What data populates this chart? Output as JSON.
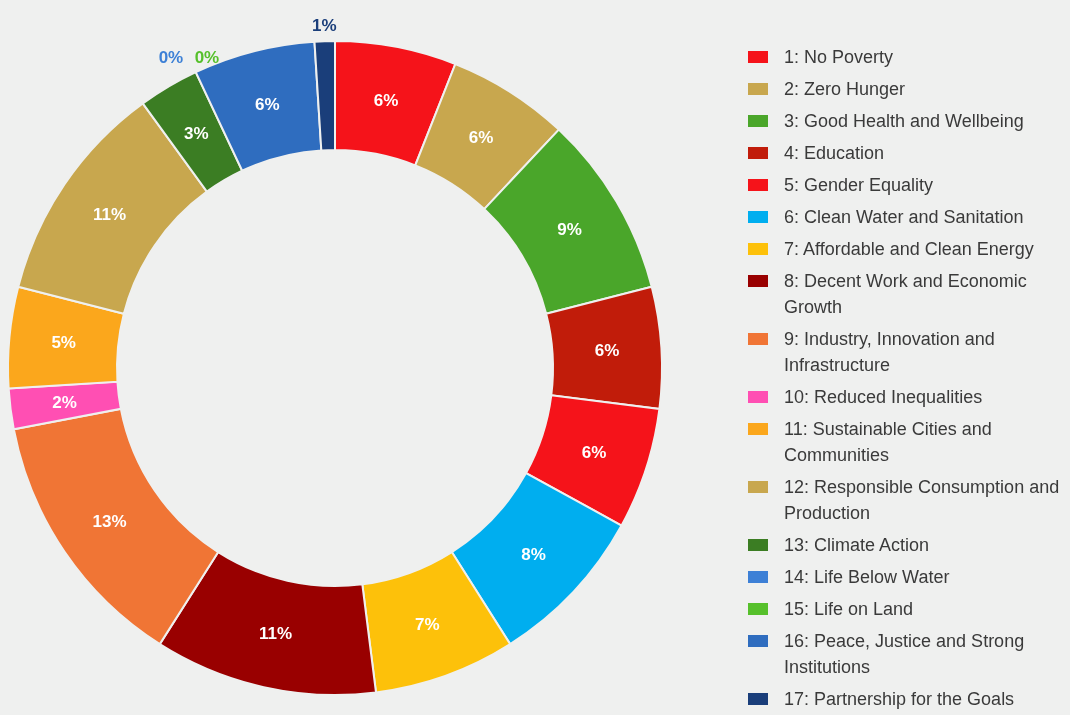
{
  "chart_data": {
    "type": "donut",
    "categories": [
      "1: No Poverty",
      "2: Zero Hunger",
      "3: Good Health and Wellbeing",
      "4: Education",
      "5: Gender Equality",
      "6: Clean Water and Sanitation",
      "7: Affordable and Clean Energy",
      "8: Decent Work and Economic Growth",
      "9: Industry, Innovation and Infrastructure",
      "10: Reduced Inequalities",
      "11: Sustainable Cities and Communities",
      "12: Responsible Consumption and Production",
      "13: Climate Action",
      "14: Life Below Water",
      "15: Life on Land",
      "16: Peace, Justice and Strong Institutions",
      "17: Partnership for the Goals"
    ],
    "values": [
      6,
      6,
      9,
      6,
      6,
      8,
      7,
      11,
      13,
      2,
      5,
      11,
      3,
      0,
      0,
      6,
      1
    ],
    "value_labels": [
      "6%",
      "6%",
      "9%",
      "6%",
      "6%",
      "8%",
      "7%",
      "11%",
      "13%",
      "2%",
      "5%",
      "11%",
      "3%",
      "0%",
      "0%",
      "6%",
      "1%"
    ],
    "colors": [
      "#f5131a",
      "#c8a74e",
      "#4aa62a",
      "#c11c0a",
      "#f5131a",
      "#00aeef",
      "#fdc10a",
      "#990000",
      "#f07535",
      "#ff4fb3",
      "#fba71c",
      "#c8a74e",
      "#3b7d23",
      "#3d80d6",
      "#56c02b",
      "#2f6dbf",
      "#1a3e7a"
    ],
    "legend": "right"
  }
}
